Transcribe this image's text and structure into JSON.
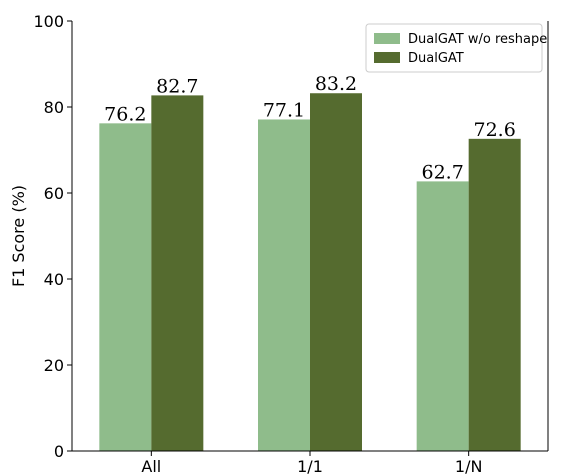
{
  "chart_data": {
    "type": "bar",
    "categories": [
      "All",
      "1/1",
      "1/N"
    ],
    "series": [
      {
        "name": "DualGAT w/o reshape",
        "values": [
          76.2,
          77.1,
          62.7
        ],
        "color": "#8fbc8b"
      },
      {
        "name": "DualGAT",
        "values": [
          82.7,
          83.2,
          72.6
        ],
        "color": "#556b2f"
      }
    ],
    "value_labels": [
      [
        "76.2",
        "77.1",
        "62.7"
      ],
      [
        "82.7",
        "83.2",
        "72.6"
      ]
    ],
    "ylabel": "F1 Score (%)",
    "xlabel": "",
    "ylim": [
      0,
      100
    ],
    "yticks": [
      0,
      20,
      40,
      60,
      80,
      100
    ],
    "grid": false,
    "legend_position": "top-right"
  }
}
